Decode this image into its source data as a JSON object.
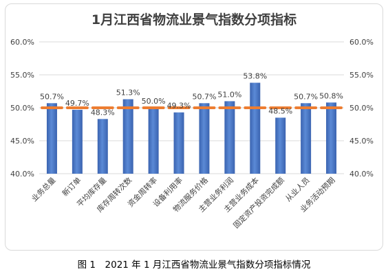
{
  "caption": "图 1　2021 年 1 月江西省物流业景气指数分项指标情况",
  "chart_data": {
    "type": "bar",
    "title": "1月江西省物流业景气指数分项指标",
    "categories": [
      "业务总量",
      "新订单",
      "平均库存量",
      "库存周转次数",
      "资金周转率",
      "设备利用率",
      "物流服务价格",
      "主营业务利润",
      "主营业务成本",
      "固定资产投资完成额",
      "从业人员",
      "业务活动预期"
    ],
    "values": [
      50.7,
      49.7,
      48.3,
      51.3,
      50.0,
      49.3,
      50.7,
      51.0,
      53.8,
      48.5,
      50.7,
      50.8
    ],
    "value_labels": [
      "50.7%",
      "49.7%",
      "48.3%",
      "51.3%",
      "50.0%",
      "49.3%",
      "50.7%",
      "51.0%",
      "53.8%",
      "48.5%",
      "50.7%",
      "50.8%"
    ],
    "reference_line": 50.0,
    "ylim": [
      40,
      60
    ],
    "yticks": [
      "40.0%",
      "45.0%",
      "50.0%",
      "55.0%",
      "60.0%"
    ],
    "ytick_values": [
      40,
      45,
      50,
      55,
      60
    ],
    "grid": true,
    "legend": "none",
    "colors": {
      "bar": "#4472c4",
      "reference": "#ed7d31",
      "grid": "#d9d9d9"
    }
  }
}
